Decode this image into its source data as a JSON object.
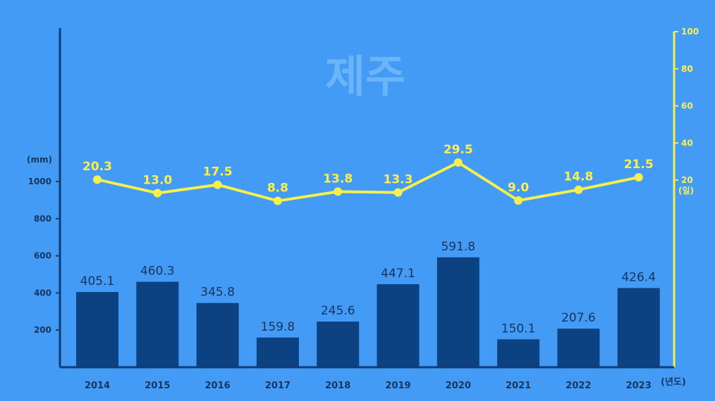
{
  "chart_data": {
    "type": "bar",
    "title": "제주",
    "categories": [
      "2014",
      "2015",
      "2016",
      "2017",
      "2018",
      "2019",
      "2020",
      "2021",
      "2022",
      "2023"
    ],
    "series": [
      {
        "values": [
          405.1,
          460.3,
          345.8,
          159.8,
          245.6,
          447.1,
          591.8,
          150.1,
          207.6,
          426.4
        ],
        "color": "#0d4282"
      },
      {
        "type": "line",
        "values": [
          20.3,
          13.0,
          17.5,
          8.8,
          13.8,
          13.3,
          29.5,
          9.0,
          14.8,
          21.5
        ],
        "color": "#f5f04a"
      }
    ],
    "y_left": {
      "unit": "(mm)",
      "ticks": [
        200,
        400,
        600,
        800,
        1000
      ],
      "range": [
        0,
        1000
      ]
    },
    "y_right": {
      "unit": "(일)",
      "ticks": [
        20,
        40,
        60,
        80,
        100
      ],
      "range": [
        0,
        100
      ]
    },
    "x_unit": "(년도)",
    "grid": false
  },
  "colors": {
    "background": "#439bf5",
    "bar": "#0d4282",
    "line": "#f5f04a",
    "left_axis": "#0d3c78",
    "right_axis": "#f5f04a"
  }
}
